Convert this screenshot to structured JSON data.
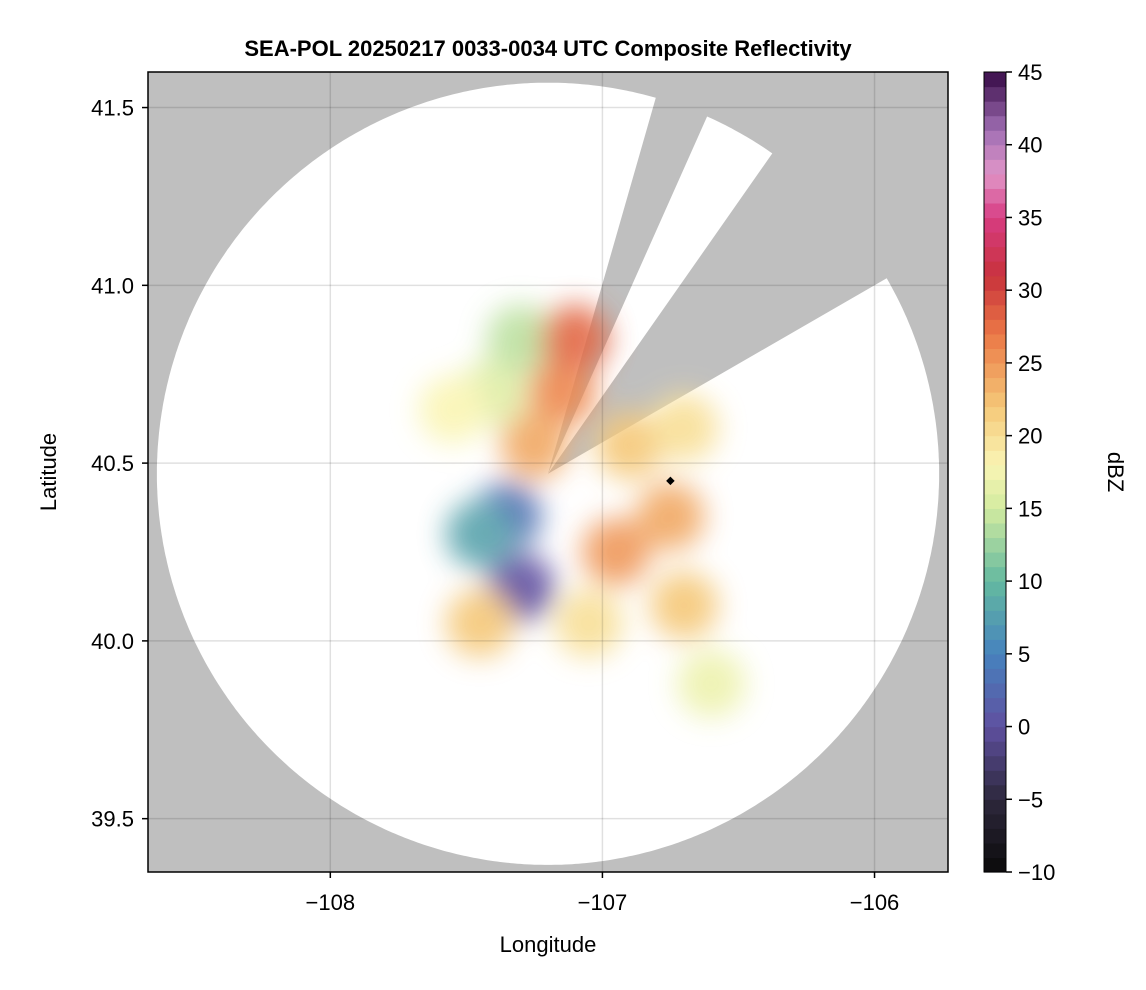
{
  "chart_data": {
    "type": "heatmap",
    "title": "SEA-POL 20250217 0033-0034 UTC Composite Reflectivity",
    "xlabel": "Longitude",
    "ylabel": "Latitude",
    "xlim": [
      -108.67,
      -105.73
    ],
    "ylim": [
      39.35,
      41.6
    ],
    "xticks": [
      -108,
      -107,
      -106
    ],
    "xtick_labels": [
      "−108",
      "−107",
      "−106"
    ],
    "yticks": [
      39.5,
      40.0,
      40.5,
      41.0,
      41.5
    ],
    "ytick_labels": [
      "39.5",
      "40.0",
      "40.5",
      "41.0",
      "41.5"
    ],
    "grid": true,
    "colorbar": {
      "label": "dBZ",
      "range": [
        -10,
        45
      ],
      "ticks": [
        -10,
        -5,
        0,
        5,
        10,
        15,
        20,
        25,
        30,
        35,
        40,
        45
      ],
      "tick_labels": [
        "−10",
        "−5",
        "0",
        "5",
        "10",
        "15",
        "20",
        "25",
        "30",
        "35",
        "40",
        "45"
      ],
      "levels": 55,
      "colormap": "spectral-like"
    },
    "radar": {
      "center": [
        -107.2,
        40.47
      ],
      "range_lat_deg": 1.1,
      "blocked_sectors_deg": [
        [
          16,
          24
        ],
        [
          35,
          60
        ]
      ],
      "no_coverage_color": "#bfbfbf",
      "coverage_color": "#ffffff"
    },
    "marker": {
      "lon": -106.75,
      "lat": 40.45,
      "color": "#000000"
    },
    "echo_regions": [
      {
        "lon": -107.4,
        "lat": 40.7,
        "value": 16
      },
      {
        "lon": -107.55,
        "lat": 40.65,
        "value": 18
      },
      {
        "lon": -107.3,
        "lat": 40.85,
        "value": 14
      },
      {
        "lon": -107.15,
        "lat": 40.7,
        "value": 26
      },
      {
        "lon": -107.1,
        "lat": 40.85,
        "value": 28
      },
      {
        "lon": -107.25,
        "lat": 40.55,
        "value": 24
      },
      {
        "lon": -106.9,
        "lat": 40.55,
        "value": 22
      },
      {
        "lon": -106.7,
        "lat": 40.6,
        "value": 20
      },
      {
        "lon": -106.75,
        "lat": 40.35,
        "value": 24
      },
      {
        "lon": -106.95,
        "lat": 40.25,
        "value": 25
      },
      {
        "lon": -106.7,
        "lat": 40.1,
        "value": 22
      },
      {
        "lon": -107.05,
        "lat": 40.05,
        "value": 20
      },
      {
        "lon": -107.3,
        "lat": 40.15,
        "value": 0
      },
      {
        "lon": -107.35,
        "lat": 40.35,
        "value": 3
      },
      {
        "lon": -107.45,
        "lat": 40.3,
        "value": 8
      },
      {
        "lon": -106.6,
        "lat": 39.88,
        "value": 17
      },
      {
        "lon": -107.45,
        "lat": 40.05,
        "value": 22
      }
    ]
  }
}
